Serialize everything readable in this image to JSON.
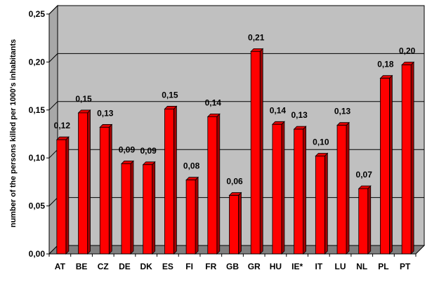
{
  "chart_data": {
    "type": "bar",
    "title": "",
    "xlabel": "",
    "ylabel": "number of the persons killed per 1000's inhabitants",
    "ylim": [
      0,
      0.25
    ],
    "ytick_values": [
      0,
      0.05,
      0.1,
      0.15,
      0.2,
      0.25
    ],
    "ytick_labels": [
      "0,00",
      "0,05",
      "0,10",
      "0,15",
      "0,20",
      "0,25"
    ],
    "categories": [
      "AT",
      "BE",
      "CZ",
      "DE",
      "DK",
      "ES",
      "FI",
      "FR",
      "GB",
      "GR",
      "HU",
      "IE*",
      "IT",
      "LU",
      "NL",
      "PL",
      "PT"
    ],
    "values": [
      0.119,
      0.147,
      0.132,
      0.094,
      0.093,
      0.151,
      0.077,
      0.143,
      0.061,
      0.211,
      0.135,
      0.13,
      0.102,
      0.134,
      0.068,
      0.183,
      0.197
    ],
    "value_labels": [
      "0,12",
      "0,15",
      "0,13",
      "0,09",
      "0,09",
      "0,15",
      "0,08",
      "0,14",
      "0,06",
      "0,21",
      "0,14",
      "0,13",
      "0,10",
      "0,13",
      "0,07",
      "0,18",
      "0,20"
    ],
    "grid": true,
    "legend": "none",
    "colors": {
      "bar_front": "#ff0000",
      "bar_side": "#a00000",
      "bar_top": "#e00000",
      "wall": "#c0c0c0",
      "wall_side": "#a8a8a8",
      "floor": "#808080",
      "grid": "#000000"
    }
  }
}
